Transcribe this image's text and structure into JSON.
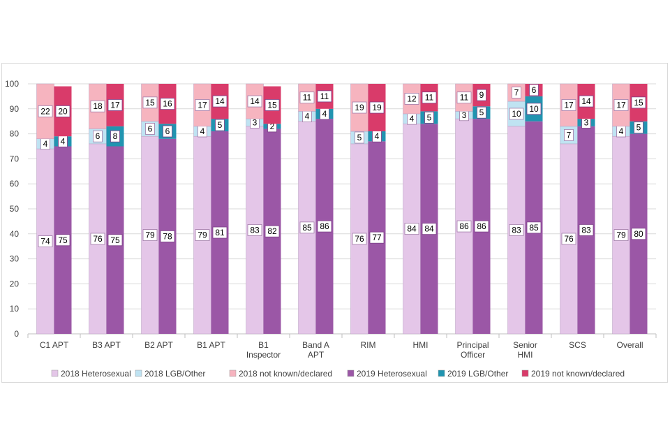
{
  "chart_data": {
    "type": "bar",
    "stacked": true,
    "title": "",
    "xlabel": "",
    "ylabel": "",
    "ylim": [
      0,
      100
    ],
    "yticks": [
      0,
      10,
      20,
      30,
      40,
      50,
      60,
      70,
      80,
      90,
      100
    ],
    "grid": true,
    "legend_position": "bottom",
    "categories": [
      "C1 APT",
      "B3 APT",
      "B2 APT",
      "B1 APT",
      "B1 Inspector",
      "Band A APT",
      "RIM",
      "HMI",
      "Principal Officer",
      "Senior HMI",
      "SCS",
      "Overall"
    ],
    "category_lines": [
      [
        "C1 APT"
      ],
      [
        "B3 APT"
      ],
      [
        "B2 APT"
      ],
      [
        "B1 APT"
      ],
      [
        "B1",
        "Inspector"
      ],
      [
        "Band A",
        "APT"
      ],
      [
        "RIM"
      ],
      [
        "HMI"
      ],
      [
        "Principal",
        "Officer"
      ],
      [
        "Senior",
        "HMI"
      ],
      [
        "SCS"
      ],
      [
        "Overall"
      ]
    ],
    "years": [
      {
        "name": "2018",
        "series": [
          {
            "name": "2018 Heterosexual",
            "values": [
              74,
              76,
              79,
              79,
              83,
              85,
              76,
              84,
              86,
              83,
              76,
              79
            ],
            "color": "#e4c6e8"
          },
          {
            "name": "2018 LGB/Other",
            "values": [
              4,
              6,
              6,
              4,
              3,
              4,
              5,
              4,
              3,
              10,
              7,
              4
            ],
            "color": "#bfe3f2"
          },
          {
            "name": "2018 not known/declared",
            "values": [
              22,
              18,
              15,
              17,
              14,
              11,
              19,
              12,
              11,
              7,
              17,
              17
            ],
            "color": "#f6b4bf"
          }
        ]
      },
      {
        "name": "2019",
        "series": [
          {
            "name": "2019 Heterosexual",
            "values": [
              75,
              75,
              78,
              81,
              82,
              86,
              77,
              84,
              86,
              85,
              83,
              80
            ],
            "color": "#9b57a6"
          },
          {
            "name": "2019 LGB/Other",
            "values": [
              4,
              8,
              6,
              5,
              2,
              4,
              4,
              5,
              5,
              10,
              3,
              5
            ],
            "color": "#2194b0"
          },
          {
            "name": "2019 not known/declared",
            "values": [
              20,
              17,
              16,
              14,
              15,
              11,
              19,
              11,
              9,
              6,
              14,
              15
            ],
            "color": "#d93b6a"
          }
        ]
      }
    ],
    "legend": [
      {
        "label": "2018 Heterosexual",
        "color": "#e4c6e8"
      },
      {
        "label": "2018 LGB/Other",
        "color": "#bfe3f2"
      },
      {
        "label": "2018 not known/declared",
        "color": "#f6b4bf"
      },
      {
        "label": "2019 Heterosexual",
        "color": "#9b57a6"
      },
      {
        "label": "2019 LGB/Other",
        "color": "#2194b0"
      },
      {
        "label": "2019 not known/declared",
        "color": "#d93b6a"
      }
    ]
  }
}
